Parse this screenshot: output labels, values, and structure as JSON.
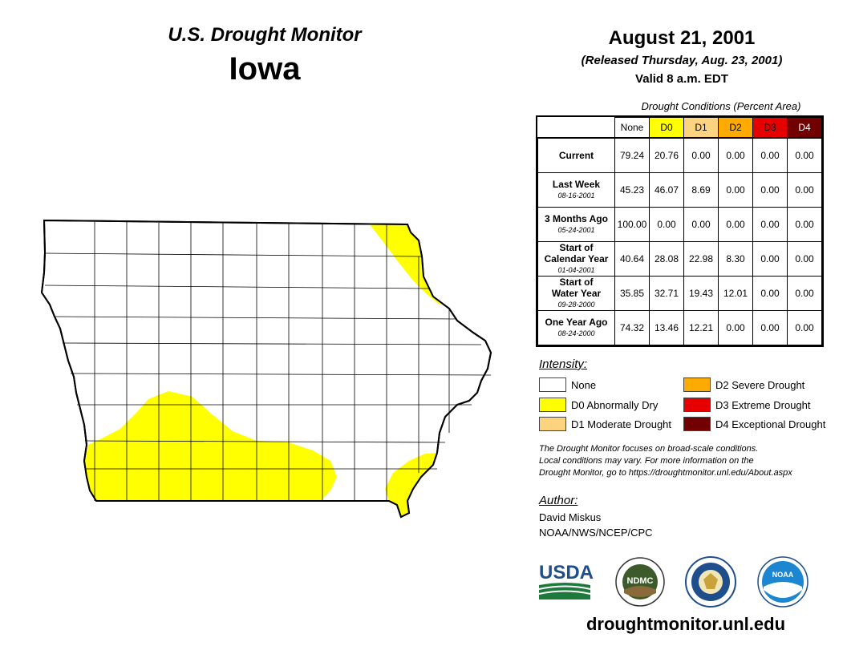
{
  "header": {
    "subtitle": "U.S. Drought Monitor",
    "state": "Iowa",
    "date": "August 21, 2001",
    "released": "(Released Thursday, Aug. 23, 2001)",
    "valid": "Valid 8 a.m. EDT"
  },
  "table": {
    "caption": "Drought Conditions (Percent Area)",
    "categories": [
      {
        "label": "None",
        "color": "#ffffff"
      },
      {
        "label": "D0",
        "color": "#ffff00"
      },
      {
        "label": "D1",
        "color": "#fcd37f"
      },
      {
        "label": "D2",
        "color": "#ffaa00"
      },
      {
        "label": "D3",
        "color": "#e60000"
      },
      {
        "label": "D4",
        "color": "#730000"
      }
    ],
    "rows": [
      {
        "label": "Current",
        "label2": "",
        "date": "",
        "values": [
          "79.24",
          "20.76",
          "0.00",
          "0.00",
          "0.00",
          "0.00"
        ]
      },
      {
        "label": "Last Week",
        "label2": "",
        "date": "08-16-2001",
        "values": [
          "45.23",
          "46.07",
          "8.69",
          "0.00",
          "0.00",
          "0.00"
        ]
      },
      {
        "label": "3 Months Ago",
        "label2": "",
        "date": "05-24-2001",
        "values": [
          "100.00",
          "0.00",
          "0.00",
          "0.00",
          "0.00",
          "0.00"
        ]
      },
      {
        "label": "Start of",
        "label2": "Calendar Year",
        "date": "01-04-2001",
        "values": [
          "40.64",
          "28.08",
          "22.98",
          "8.30",
          "0.00",
          "0.00"
        ]
      },
      {
        "label": "Start of",
        "label2": "Water Year",
        "date": "09-28-2000",
        "values": [
          "35.85",
          "32.71",
          "19.43",
          "12.01",
          "0.00",
          "0.00"
        ]
      },
      {
        "label": "One Year Ago",
        "label2": "",
        "date": "08-24-2000",
        "values": [
          "74.32",
          "13.46",
          "12.21",
          "0.00",
          "0.00",
          "0.00"
        ]
      }
    ]
  },
  "legend": {
    "title": "Intensity:",
    "items": [
      {
        "label": "None",
        "color": "#ffffff"
      },
      {
        "label": "D0 Abnormally Dry",
        "color": "#ffff00"
      },
      {
        "label": "D1 Moderate Drought",
        "color": "#fcd37f"
      },
      {
        "label": "D2 Severe Drought",
        "color": "#ffaa00"
      },
      {
        "label": "D3 Extreme Drought",
        "color": "#e60000"
      },
      {
        "label": "D4 Exceptional Drought",
        "color": "#730000"
      }
    ]
  },
  "note": {
    "line1": "The Drought Monitor focuses on broad-scale conditions.",
    "line2": "Local conditions may vary. For more information on the",
    "line3": "Drought Monitor, go to https://droughtmonitor.unl.edu/About.aspx"
  },
  "author": {
    "title": "Author:",
    "name": "David Miskus",
    "org": "NOAA/NWS/NCEP/CPC"
  },
  "logos": {
    "usda": "USDA",
    "ndmc": "NDMC",
    "noaa": "NOAA"
  },
  "url": "droughtmonitor.unl.edu"
}
